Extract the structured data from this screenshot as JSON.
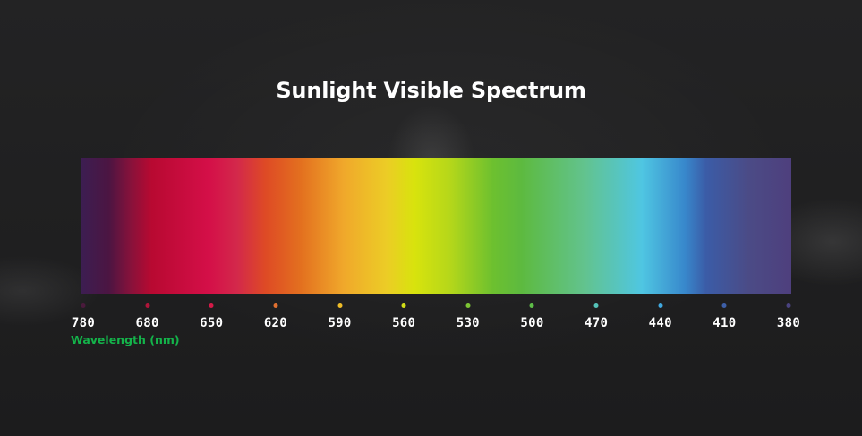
{
  "title": "Sunlight Visible Spectrum",
  "axis_label": "Wavelength (nm)",
  "ticks": [
    {
      "label": "780",
      "color": "#4a1a3c"
    },
    {
      "label": "680",
      "color": "#b0153a"
    },
    {
      "label": "650",
      "color": "#d41a48"
    },
    {
      "label": "620",
      "color": "#e07030"
    },
    {
      "label": "590",
      "color": "#eebc28"
    },
    {
      "label": "560",
      "color": "#d2de18"
    },
    {
      "label": "530",
      "color": "#7cc534"
    },
    {
      "label": "500",
      "color": "#5ebd48"
    },
    {
      "label": "470",
      "color": "#55c3b8"
    },
    {
      "label": "440",
      "color": "#40a9e0"
    },
    {
      "label": "410",
      "color": "#3d5fa8"
    },
    {
      "label": "380",
      "color": "#4a4380"
    }
  ]
}
